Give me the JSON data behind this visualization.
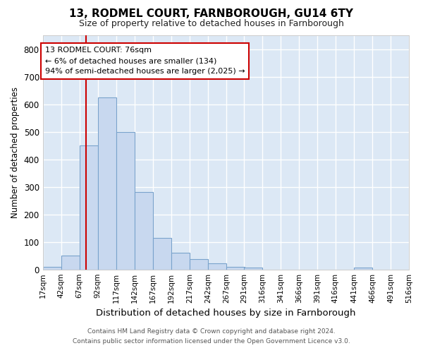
{
  "title": "13, RODMEL COURT, FARNBOROUGH, GU14 6TY",
  "subtitle": "Size of property relative to detached houses in Farnborough",
  "xlabel": "Distribution of detached houses by size in Farnborough",
  "ylabel": "Number of detached properties",
  "footer_line1": "Contains HM Land Registry data © Crown copyright and database right 2024.",
  "footer_line2": "Contains public sector information licensed under the Open Government Licence v3.0.",
  "bar_color": "#c8d8ef",
  "bar_edge_color": "#7aa3cc",
  "plot_bg_color": "#dce8f5",
  "fig_bg_color": "#ffffff",
  "grid_color": "#ffffff",
  "annotation_text_line1": "13 RODMEL COURT: 76sqm",
  "annotation_text_line2": "← 6% of detached houses are smaller (134)",
  "annotation_text_line3": "94% of semi-detached houses are larger (2,025) →",
  "property_size": 76,
  "vline_color": "#cc0000",
  "bin_edges": [
    17,
    42,
    67,
    92,
    117,
    142,
    167,
    192,
    217,
    242,
    267,
    291,
    316,
    341,
    366,
    391,
    416,
    441,
    466,
    491,
    516
  ],
  "bin_counts": [
    10,
    50,
    450,
    625,
    500,
    280,
    115,
    60,
    38,
    22,
    10,
    8,
    0,
    0,
    0,
    0,
    0,
    8,
    0,
    0
  ],
  "ylim": [
    0,
    850
  ],
  "yticks": [
    0,
    100,
    200,
    300,
    400,
    500,
    600,
    700,
    800
  ]
}
